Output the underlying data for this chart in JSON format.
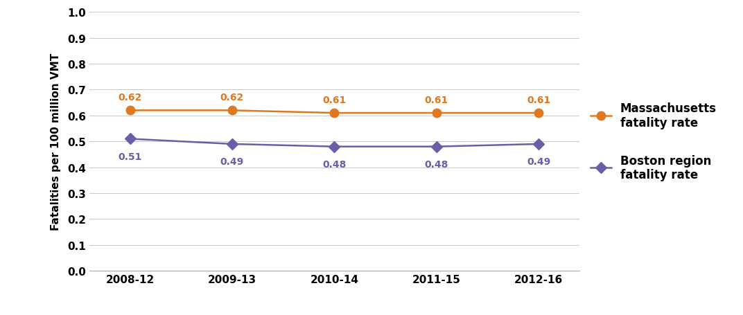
{
  "x_labels": [
    "2008-12",
    "2009-13",
    "2010-14",
    "2011-15",
    "2012-16"
  ],
  "massachusetts_values": [
    0.62,
    0.62,
    0.61,
    0.61,
    0.61
  ],
  "boston_values": [
    0.51,
    0.49,
    0.48,
    0.48,
    0.49
  ],
  "massachusetts_color": "#E07820",
  "boston_color": "#6B5EA8",
  "massachusetts_label": "Massachusetts\nfatality rate",
  "boston_label": "Boston region\nfatality rate",
  "ylabel": "Fatalities per 100 million VMT",
  "ylim": [
    0.0,
    1.0
  ],
  "yticks": [
    0.0,
    0.1,
    0.2,
    0.3,
    0.4,
    0.5,
    0.6,
    0.7,
    0.8,
    0.9,
    1.0
  ],
  "grid_color": "#CCCCCC",
  "background_color": "#FFFFFF",
  "line_width": 1.8,
  "marker_size": 9,
  "annotation_fontsize": 10,
  "label_fontsize": 11,
  "tick_fontsize": 11,
  "legend_fontsize": 12,
  "text_color": "#000000"
}
